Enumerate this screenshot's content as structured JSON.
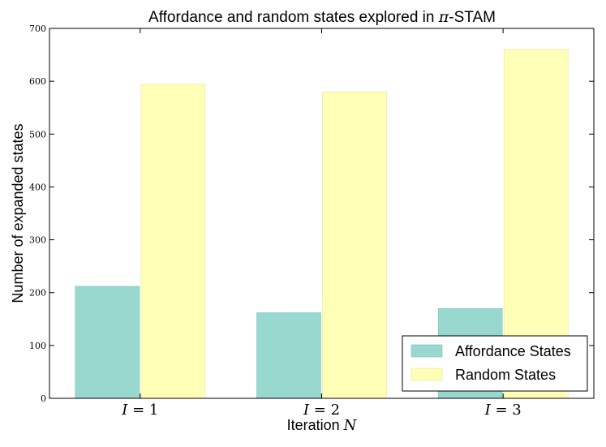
{
  "chart_data": {
    "type": "bar",
    "title_prefix": "Affordance and random states explored in ",
    "title_math": "π",
    "title_suffix": "-STAM",
    "xlabel_prefix": "Iteration ",
    "xlabel_math": "N",
    "ylabel": "Number of expanded states",
    "categories": [
      {
        "var": "I",
        "rest": " = 1"
      },
      {
        "var": "I",
        "rest": " = 2"
      },
      {
        "var": "I",
        "rest": " = 3"
      }
    ],
    "series": [
      {
        "name": "Affordance States",
        "color": "#98d8ce",
        "edge": "#7cc4b8",
        "values": [
          212,
          162,
          170
        ]
      },
      {
        "name": "Random States",
        "color": "#ffffb7",
        "edge": "#e4e49a",
        "values": [
          594,
          580,
          660
        ]
      }
    ],
    "ylim": [
      0,
      700
    ],
    "yticks": [
      0,
      100,
      200,
      300,
      400,
      500,
      600,
      700
    ],
    "legend_position": "lower-right"
  }
}
